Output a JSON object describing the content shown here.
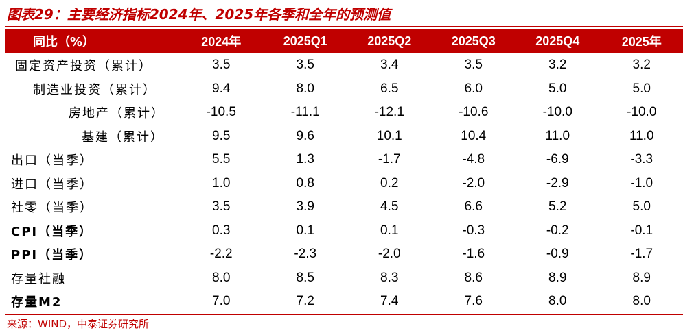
{
  "title": "图表29：主要经济指标2024年、2025年各季和全年的预测值",
  "header": [
    "同比（%）",
    "2024年",
    "2025Q1",
    "2025Q2",
    "2025Q3",
    "2025Q4",
    "2025年"
  ],
  "rows": [
    {
      "label": "固定资产投资（累计）",
      "values": [
        "3.5",
        "3.5",
        "3.4",
        "3.5",
        "3.2",
        "3.2"
      ]
    },
    {
      "label": "制造业投资（累计）",
      "values": [
        "9.4",
        "8.0",
        "6.5",
        "6.0",
        "5.0",
        "5.0"
      ]
    },
    {
      "label": "房地产（累计）",
      "values": [
        "-10.5",
        "-11.1",
        "-12.1",
        "-10.6",
        "-10.0",
        "-10.0"
      ]
    },
    {
      "label": "基建（累计）",
      "values": [
        "9.5",
        "9.6",
        "10.1",
        "10.4",
        "11.0",
        "11.0"
      ]
    },
    {
      "label": "出口（当季）",
      "values": [
        "5.5",
        "1.3",
        "-1.7",
        "-4.8",
        "-6.9",
        "-3.3"
      ]
    },
    {
      "label": "进口（当季）",
      "values": [
        "1.0",
        "0.8",
        "0.2",
        "-2.0",
        "-2.9",
        "-1.0"
      ]
    },
    {
      "label": "社零（当季）",
      "values": [
        "3.5",
        "3.9",
        "4.5",
        "6.6",
        "5.2",
        "5.0"
      ]
    },
    {
      "label": "CPI（当季）",
      "values": [
        "0.3",
        "0.1",
        "0.1",
        "-0.3",
        "-0.2",
        "-0.1"
      ]
    },
    {
      "label": "PPI（当季）",
      "values": [
        "-2.2",
        "-2.3",
        "-2.0",
        "-1.6",
        "-0.9",
        "-1.7"
      ]
    },
    {
      "label": "存量社融",
      "values": [
        "8.0",
        "8.5",
        "8.3",
        "8.6",
        "8.9",
        "8.9"
      ]
    },
    {
      "label": "存量M2",
      "values": [
        "7.0",
        "7.2",
        "7.4",
        "7.6",
        "8.0",
        "8.0"
      ]
    }
  ],
  "source": "来源：WIND，中泰证券研究所",
  "colors": {
    "accent": "#c00000",
    "header_text": "#ffffff"
  }
}
